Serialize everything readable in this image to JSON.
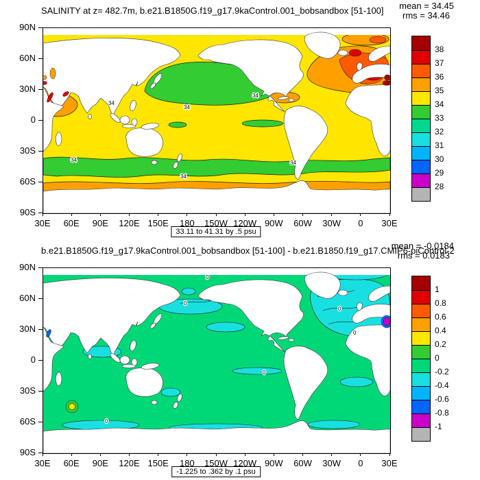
{
  "panels": [
    {
      "title": "SALINITY at z= 482.7m, b.e21.B1850G.f19_g17.9kaControl.001_bobsandbox [51-100]",
      "mean_label": "mean = 34.45",
      "rms_label": "rms = 34.46",
      "range_label": "33.11 to 41.31 by .5 psu",
      "contour_label": "34",
      "lat_ticks": [
        "90N",
        "60N",
        "30N",
        "0",
        "30S",
        "60S",
        "90S"
      ],
      "lon_ticks": [
        "30E",
        "60E",
        "90E",
        "120E",
        "150E",
        "180",
        "150W",
        "120W",
        "90W",
        "60W",
        "30W",
        "0",
        "30E"
      ],
      "colorbar": {
        "labels": [
          "38",
          "37",
          "36",
          "35",
          "34",
          "33",
          "32",
          "31",
          "30",
          "29",
          "28"
        ],
        "colors": [
          "#a50000",
          "#e00000",
          "#ff5a00",
          "#ffa000",
          "#ffe600",
          "#33cc33",
          "#00d890",
          "#18e0e0",
          "#00b4ff",
          "#0064ff",
          "#c800c8",
          "#b4b4b4"
        ]
      }
    },
    {
      "title": "b.e21.B1850G.f19_g17.9kaControl.001_bobsandbox [51-100] - b.e21.B1850.f19_g17.CMIP6-piControl-2",
      "mean_label": "mean = -0.0184",
      "rms_label": "rms = 0.0183",
      "range_label": "-1.225 to .362 by .1 psu",
      "contour_label": "0",
      "lat_ticks": [
        "90N",
        "60N",
        "30N",
        "0",
        "30S",
        "60S",
        "90S"
      ],
      "lon_ticks": [
        "30E",
        "60E",
        "90E",
        "120E",
        "150E",
        "180",
        "150W",
        "120W",
        "90W",
        "60W",
        "30W",
        "0",
        "30E"
      ],
      "colorbar": {
        "labels": [
          "1",
          "0.8",
          "0.6",
          "0.4",
          "0.2",
          "0",
          "-0.2",
          "-0.4",
          "-0.6",
          "-0.8",
          "-1"
        ],
        "colors": [
          "#a50000",
          "#e00000",
          "#ff5a00",
          "#ffa000",
          "#ffe600",
          "#33cc33",
          "#00d878",
          "#18e0e0",
          "#00b4ff",
          "#0064ff",
          "#c800c8",
          "#b4b4b4"
        ]
      }
    }
  ],
  "chart_data": [
    {
      "type": "heatmap",
      "plot_kind": "global lat-lon filled contour map",
      "title": "SALINITY at z= 482.7m, b.e21.B1850G.f19_g17.9kaControl.001_bobsandbox [51-100]",
      "variable": "SALINITY",
      "depth": "482.7m",
      "units": "psu",
      "mean": 34.45,
      "rms": 34.46,
      "data_min": 33.11,
      "data_max": 41.31,
      "contour_interval": 0.5,
      "labeled_contour": 34,
      "colorbar_boundaries": [
        38,
        37,
        36,
        35,
        34,
        33,
        32,
        31,
        30,
        29,
        28
      ],
      "colorbar_colors_top_to_bottom": [
        "#a50000",
        "#e00000",
        "#ff5a00",
        "#ffa000",
        "#ffe600",
        "#33cc33",
        "#00d890",
        "#18e0e0",
        "#00b4ff",
        "#0064ff",
        "#c800c8",
        "#b4b4b4"
      ],
      "x_axis": {
        "ticks": [
          "30E",
          "60E",
          "90E",
          "120E",
          "150E",
          "180",
          "150W",
          "120W",
          "90W",
          "60W",
          "30W",
          "0",
          "30E"
        ],
        "range": "30E eastward around globe to 30E"
      },
      "y_axis": {
        "ticks": [
          "90N",
          "60N",
          "30N",
          "0",
          "30S",
          "60S",
          "90S"
        ],
        "range": "90N to 90S"
      },
      "notable_features": [
        "most of global ocean in 34-35 psu band (yellow)",
        "33-34 psu (green) pool across North Pacific ~25-50N and circumpolar band ~35-50S, contours labeled 34",
        "35-36 psu (orange) band along Antarctic margin and in Arabian Sea / northwest Indian Ocean",
        "36-38+ psu (orange-red to dark red) in North Atlantic with maximum near Mediterranean outflow at eastern map edge ~35N"
      ]
    },
    {
      "type": "heatmap",
      "plot_kind": "global lat-lon filled contour difference map",
      "title": "b.e21.B1850G.f19_g17.9kaControl.001_bobsandbox [51-100] - b.e21.B1850.f19_g17.CMIP6-piControl-2",
      "variable": "SALINITY difference",
      "units": "psu",
      "mean": -0.0184,
      "rms": 0.0183,
      "data_min": -1.225,
      "data_max": 0.362,
      "contour_interval": 0.1,
      "labeled_contour": 0,
      "colorbar_boundaries": [
        1,
        0.8,
        0.6,
        0.4,
        0.2,
        0,
        -0.2,
        -0.4,
        -0.6,
        -0.8,
        -1
      ],
      "colorbar_colors_top_to_bottom": [
        "#a50000",
        "#e00000",
        "#ff5a00",
        "#ffa000",
        "#ffe600",
        "#33cc33",
        "#00d878",
        "#18e0e0",
        "#00b4ff",
        "#0064ff",
        "#c800c8",
        "#b4b4b4"
      ],
      "x_axis": {
        "ticks": [
          "30E",
          "60E",
          "90E",
          "120E",
          "150E",
          "180",
          "150W",
          "120W",
          "90W",
          "60W",
          "30W",
          "0",
          "30E"
        ],
        "range": "30E eastward around globe to 30E"
      },
      "y_axis": {
        "ticks": [
          "90N",
          "60N",
          "30N",
          "0",
          "30S",
          "60S",
          "90S"
        ],
        "range": "90N to 90S"
      },
      "notable_features": [
        "difference nearly uniform, mostly in -0.2 to 0 psu band (green) with 0 contours",
        "-0.2 to -0.4 psu (cyan) patches in North Atlantic/Arctic, North Pacific and Southern Ocean",
        "strong negative (below -0.8, magenta) spot at Mediterranean outflow near eastern map edge ~35N",
        "small positive spot near ~55S, 50-75E (Kerguelen region)"
      ]
    }
  ]
}
